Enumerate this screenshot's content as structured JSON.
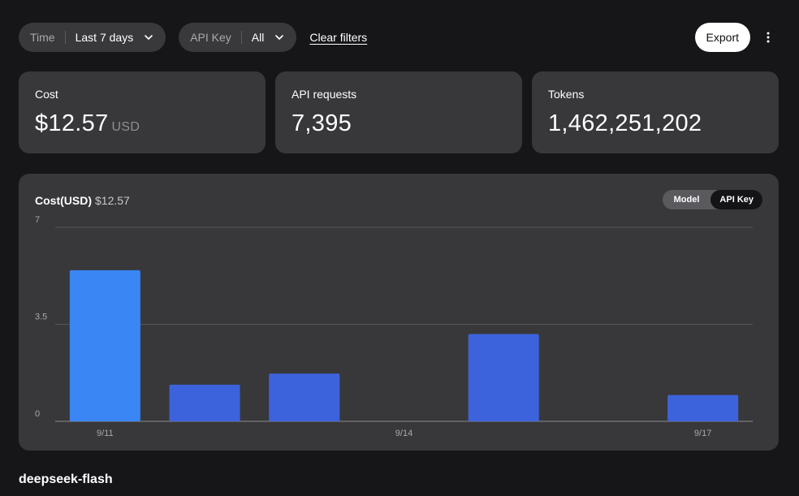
{
  "filters": {
    "time": {
      "label": "Time",
      "value": "Last 7 days"
    },
    "api_key": {
      "label": "API Key",
      "value": "All"
    },
    "clear_label": "Clear filters",
    "export_label": "Export"
  },
  "cards": {
    "cost": {
      "title": "Cost",
      "value": "$12.57",
      "unit": "USD"
    },
    "requests": {
      "title": "API requests",
      "value": "7,395"
    },
    "tokens": {
      "title": "Tokens",
      "value": "1,462,251,202"
    }
  },
  "chart_panel": {
    "title": "Cost(USD)",
    "total": "$12.57",
    "toggle": {
      "options": [
        "Model",
        "API Key"
      ],
      "selected": "API Key"
    }
  },
  "chart_data": {
    "type": "bar",
    "categories": [
      "9/11",
      "9/12",
      "9/13",
      "9/14",
      "9/15",
      "9/16",
      "9/17"
    ],
    "x_tick_labels": [
      "9/11",
      "9/14",
      "9/17"
    ],
    "values": [
      5.45,
      1.32,
      1.72,
      0,
      3.15,
      0,
      0.95
    ],
    "bar_colors": [
      "#3a86f5",
      "#3d63dc",
      "#3d63dc",
      "#3d63dc",
      "#3d63dc",
      "#3d63dc",
      "#3d63dc"
    ],
    "y_ticks": [
      "7",
      "3.5",
      "0"
    ],
    "ylim": [
      0,
      7
    ],
    "grid": true
  },
  "footer": {
    "title": "deepseek-flash"
  },
  "colors": {
    "background": "#161618",
    "card": "#38383b",
    "bar_primary": "#3a86f5",
    "bar_secondary": "#3d63dc"
  }
}
